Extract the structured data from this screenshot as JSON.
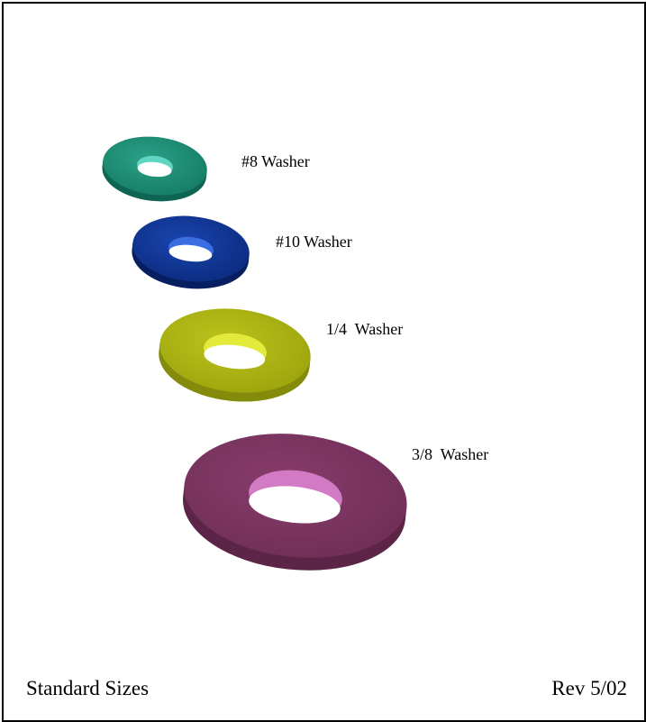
{
  "washers": [
    {
      "label": "#8 Washer",
      "color": "#1a8a72",
      "side": "#0f6553",
      "hole": "#5fd6c4"
    },
    {
      "label": "#10 Washer",
      "color": "#0b2e8a",
      "side": "#071f60",
      "hole": "#3a6ee0"
    },
    {
      "label": "1/4  Washer",
      "color": "#a9b012",
      "side": "#848a0a",
      "hole": "#e4ea3a"
    },
    {
      "label": "3/8  Washer",
      "color": "#7a3560",
      "side": "#5c2447",
      "hole": "#d27ac4"
    }
  ],
  "footer": {
    "left": "Standard Sizes",
    "right": "Rev 5/02"
  }
}
